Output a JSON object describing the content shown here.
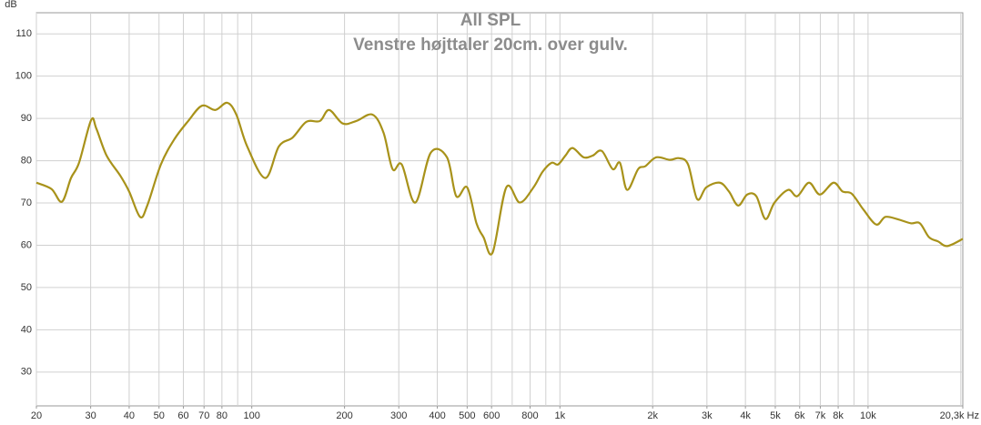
{
  "chart_data": {
    "type": "line",
    "title": "All SPL",
    "subtitle": "Venstre højttaler 20cm. over gulv.",
    "y_label": "dB",
    "log_x": true,
    "grid": true,
    "xlim": [
      20,
      20300
    ],
    "ylim": [
      22,
      115
    ],
    "xticks": [
      20,
      30,
      40,
      50,
      60,
      70,
      80,
      100,
      200,
      300,
      400,
      500,
      600,
      800,
      {
        "value": 1000,
        "label": "1k"
      },
      {
        "value": 2000,
        "label": "2k"
      },
      {
        "value": 3000,
        "label": "3k"
      },
      {
        "value": 4000,
        "label": "4k"
      },
      {
        "value": 5000,
        "label": "5k"
      },
      {
        "value": 6000,
        "label": "6k"
      },
      {
        "value": 7000,
        "label": "7k"
      },
      {
        "value": 8000,
        "label": "8k"
      },
      {
        "value": 10000,
        "label": "10k"
      },
      {
        "value": 20300,
        "label": "20,3k Hz"
      }
    ],
    "x_grid": [
      20,
      30,
      40,
      50,
      60,
      70,
      80,
      90,
      100,
      200,
      300,
      400,
      500,
      600,
      700,
      800,
      900,
      1000,
      2000,
      3000,
      4000,
      5000,
      6000,
      7000,
      8000,
      9000,
      10000,
      20000
    ],
    "yticks": [
      30,
      40,
      50,
      60,
      70,
      80,
      90,
      100,
      110
    ],
    "series": [
      {
        "name": "Venstre højttaler 20cm. over gulv.",
        "color": "#a8921a",
        "x": [
          20,
          22.4,
          24.2,
          25.9,
          27.5,
          30.1,
          31.3,
          33.8,
          37.4,
          40,
          43.4,
          45.8,
          50.7,
          56.1,
          62.2,
          68.9,
          76.2,
          83.2,
          89.1,
          96.6,
          110.6,
          122.5,
          135.8,
          150.4,
          166.4,
          178.2,
          197.3,
          218.4,
          246.6,
          267.7,
          286.4,
          306.7,
          339.6,
          381,
          430,
          461,
          500,
          536,
          565,
          605,
          670,
          741,
          821,
          879,
          940,
          986,
          1042,
          1099,
          1194,
          1277,
          1368,
          1484,
          1566,
          1652,
          1794,
          1893,
          2055,
          2274,
          2434,
          2606,
          2789,
          2985,
          3303,
          3537,
          3787,
          4054,
          4339,
          4645,
          4972,
          5502,
          5890,
          6430,
          6980,
          7724,
          8268,
          8851,
          9667,
          10630,
          11380,
          12420,
          13760,
          14730,
          15770,
          16880,
          18070,
          20300
        ],
        "values": [
          74.8,
          73.3,
          70.3,
          75.9,
          79.5,
          89.6,
          87.6,
          81.2,
          76.5,
          72.7,
          66.7,
          69.4,
          79.1,
          85.1,
          89.4,
          93.0,
          92.0,
          93.7,
          90.9,
          83.4,
          75.9,
          83.4,
          85.5,
          89.2,
          89.4,
          92.0,
          88.8,
          89.4,
          90.9,
          86.6,
          78.0,
          79.1,
          70.1,
          81.9,
          80.8,
          71.6,
          73.7,
          65.2,
          61.9,
          58.3,
          73.7,
          70.1,
          73.7,
          77.4,
          79.5,
          79.1,
          81.2,
          83.0,
          80.8,
          81.2,
          82.3,
          78.0,
          79.5,
          73.1,
          78.0,
          78.7,
          80.8,
          80.2,
          80.6,
          79.1,
          70.9,
          73.7,
          74.8,
          72.7,
          69.4,
          72.0,
          71.6,
          66.2,
          70.1,
          73.1,
          71.6,
          74.8,
          72.0,
          74.8,
          72.7,
          72.2,
          68.4,
          64.9,
          66.7,
          66.2,
          65.2,
          65.2,
          61.9,
          60.9,
          59.8,
          61.5
        ]
      }
    ]
  }
}
